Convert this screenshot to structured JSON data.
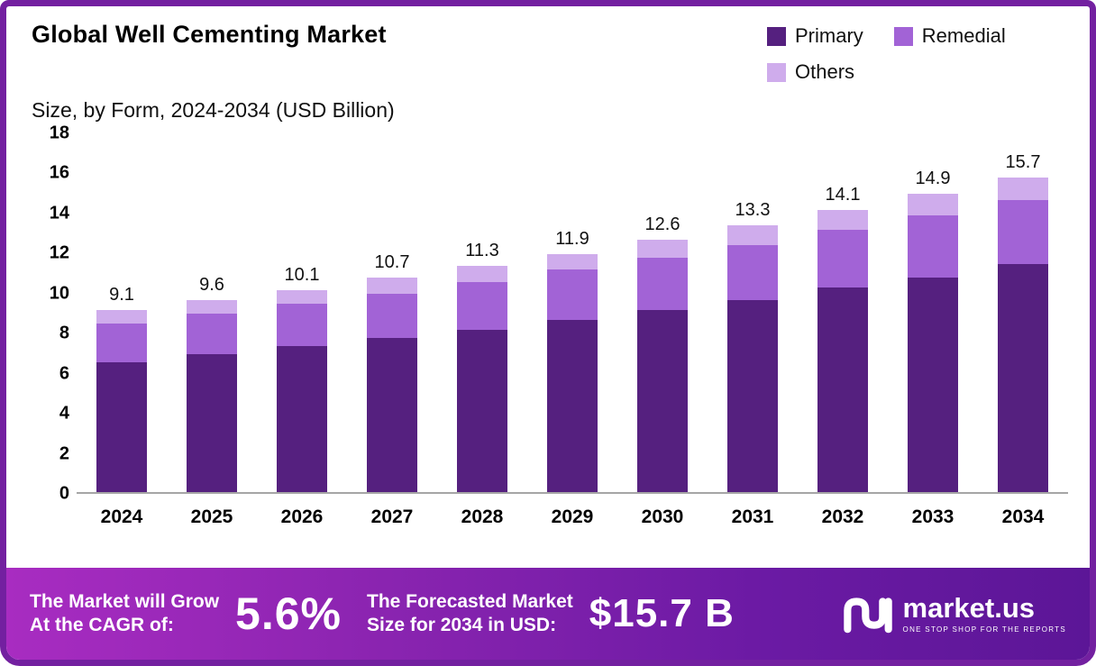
{
  "title": "Global Well Cementing Market",
  "subtitle": "Size, by Form, 2024-2034 (USD Billion)",
  "colors": {
    "primary": "#55207f",
    "remedial": "#a263d6",
    "others": "#cfacec",
    "border": "#7320a0"
  },
  "chart_data": {
    "type": "bar",
    "stacked": true,
    "title": "Global Well Cementing Market Size, by Form, 2024-2034 (USD Billion)",
    "categories": [
      "2024",
      "2025",
      "2026",
      "2027",
      "2028",
      "2029",
      "2030",
      "2031",
      "2032",
      "2033",
      "2034"
    ],
    "series": [
      {
        "name": "Primary",
        "color": "#55207f",
        "values": [
          6.5,
          6.9,
          7.3,
          7.7,
          8.1,
          8.6,
          9.1,
          9.6,
          10.2,
          10.7,
          11.4
        ]
      },
      {
        "name": "Remedial",
        "color": "#a263d6",
        "values": [
          1.9,
          2.0,
          2.1,
          2.2,
          2.4,
          2.5,
          2.6,
          2.75,
          2.9,
          3.1,
          3.2
        ]
      },
      {
        "name": "Others",
        "color": "#cfacec",
        "values": [
          0.7,
          0.7,
          0.7,
          0.8,
          0.8,
          0.8,
          0.9,
          0.95,
          1.0,
          1.1,
          1.1
        ]
      }
    ],
    "totals": [
      "9.1",
      "9.6",
      "10.1",
      "10.7",
      "11.3",
      "11.9",
      "12.6",
      "13.3",
      "14.1",
      "14.9",
      "15.7"
    ],
    "xlabel": "",
    "ylabel": "",
    "ylim": [
      0,
      18
    ],
    "yticks": [
      0,
      2,
      4,
      6,
      8,
      10,
      12,
      14,
      16,
      18
    ],
    "grid": false,
    "legend_position": "top-right"
  },
  "legend": [
    {
      "label": "Primary",
      "color": "#55207f"
    },
    {
      "label": "Remedial",
      "color": "#a263d6"
    },
    {
      "label": "Others",
      "color": "#cfacec"
    }
  ],
  "footer": {
    "left_line1": "The Market will Grow",
    "left_line2": "At the CAGR of:",
    "cagr_value": "5.6%",
    "right_line1": "The Forecasted Market",
    "right_line2": "Size for 2034 in USD:",
    "forecast_value": "$15.7 B",
    "brand": "market.us",
    "brand_tagline": "ONE STOP SHOP FOR THE REPORTS"
  }
}
